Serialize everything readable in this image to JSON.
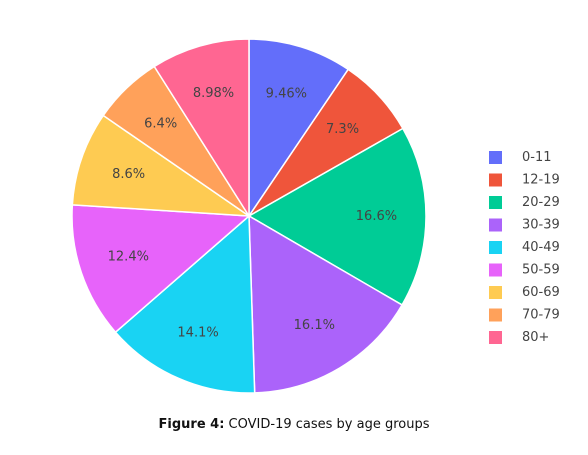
{
  "chart_data": {
    "type": "pie",
    "categories": [
      "0-11",
      "12-19",
      "20-29",
      "30-39",
      "40-49",
      "50-59",
      "60-69",
      "70-79",
      "80+"
    ],
    "values": [
      9.46,
      7.3,
      16.6,
      16.1,
      14.1,
      12.4,
      8.6,
      6.4,
      8.98
    ],
    "labels": [
      "9.46%",
      "7.3%",
      "16.6%",
      "16.1%",
      "14.1%",
      "12.4%",
      "8.6%",
      "6.4%",
      "8.98%"
    ],
    "colors": [
      "#636efa",
      "#ef553b",
      "#00cc96",
      "#ab63fa",
      "#19d3f3",
      "#e763fa",
      "#fecb52",
      "#ffa15a",
      "#ff6692"
    ],
    "direction": "clockwise",
    "start": "top",
    "legend_position": "right"
  },
  "caption": {
    "prefix": "Figure 4:",
    "text": " COVID-19 cases by age groups"
  }
}
